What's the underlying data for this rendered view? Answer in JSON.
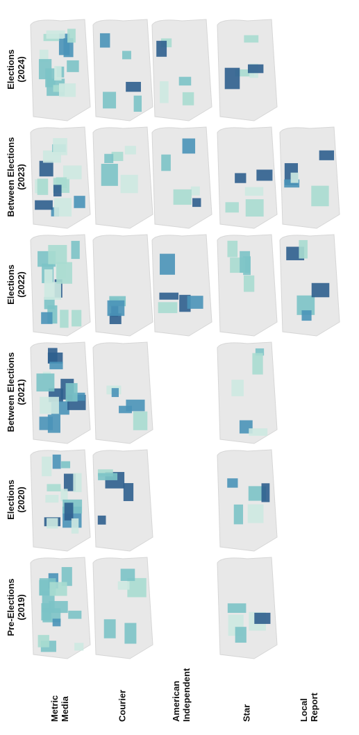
{
  "periods": [
    {
      "lines": [
        "Pre-Elections",
        "(2019)"
      ]
    },
    {
      "lines": [
        "Elections",
        "(2020)"
      ]
    },
    {
      "lines": [
        "Between Elections",
        "(2021)"
      ]
    },
    {
      "lines": [
        "Elections",
        "(2022)"
      ]
    },
    {
      "lines": [
        "Between Elections",
        "(2023)"
      ]
    },
    {
      "lines": [
        "Elections",
        "(2024)"
      ]
    }
  ],
  "outlets": [
    {
      "lines": [
        "Metric",
        "Media"
      ],
      "maps": [
        true,
        true,
        true,
        true,
        true,
        true
      ]
    },
    {
      "lines": [
        "Courier"
      ],
      "maps": [
        true,
        true,
        true,
        true,
        true,
        true
      ]
    },
    {
      "lines": [
        "American",
        "Independent"
      ],
      "maps": [
        false,
        false,
        false,
        true,
        true,
        true
      ]
    },
    {
      "lines": [
        "Star"
      ],
      "maps": [
        true,
        true,
        true,
        true,
        true,
        true
      ]
    },
    {
      "lines": [
        "Local",
        "Report"
      ],
      "maps": [
        false,
        false,
        false,
        true,
        true,
        false
      ]
    }
  ]
}
